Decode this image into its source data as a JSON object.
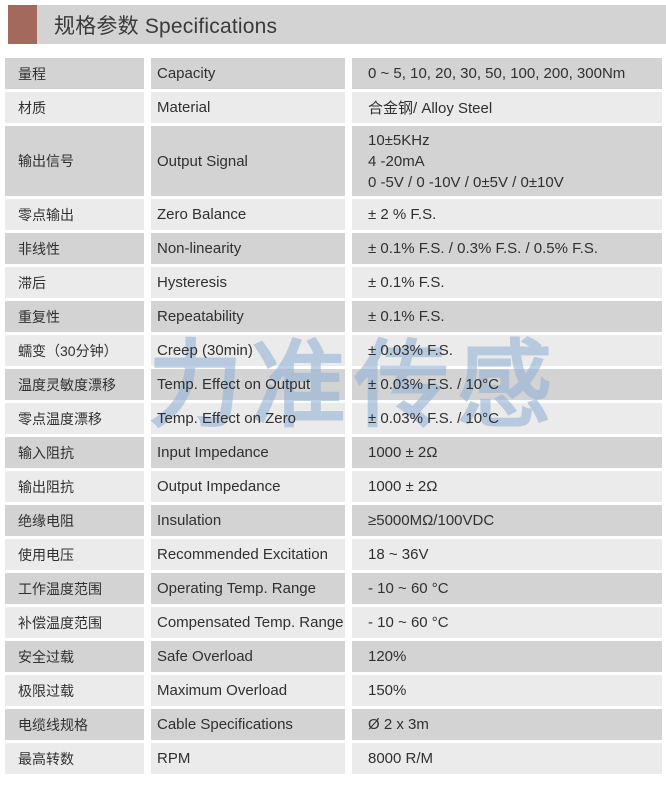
{
  "header": {
    "title": "规格参数 Specifications",
    "accent_color": "#a2695c"
  },
  "watermark": {
    "text": "力准传感",
    "color": "#92b2d6"
  },
  "colors": {
    "row_dark": "#d3d3d3",
    "row_light": "#ebebeb",
    "header_bar": "#d3d3d3"
  },
  "table": {
    "rows": [
      {
        "cn": "量程",
        "en": "Capacity",
        "value": "0 ~ 5, 10, 20, 30, 50, 100, 200, 300Nm"
      },
      {
        "cn": "材质",
        "en": "Material",
        "value": "合金钢/ Alloy Steel"
      },
      {
        "cn": "输出信号",
        "en": "Output Signal",
        "value_lines": [
          "10±5KHz",
          "4 -20mA",
          "0 -5V / 0 -10V / 0±5V / 0±10V"
        ]
      },
      {
        "cn": "零点输出",
        "en": "Zero Balance",
        "value": "± 2 % F.S."
      },
      {
        "cn": "非线性",
        "en": "Non-linearity",
        "value": "± 0.1% F.S. / 0.3% F.S. / 0.5% F.S."
      },
      {
        "cn": "滞后",
        "en": "Hysteresis",
        "value": "± 0.1% F.S."
      },
      {
        "cn": "重复性",
        "en": "Repeatability",
        "value": "± 0.1% F.S."
      },
      {
        "cn": "蠕变（30分钟）",
        "en": "Creep (30min)",
        "value": "± 0.03% F.S."
      },
      {
        "cn": "温度灵敏度漂移",
        "en": "Temp. Effect on Output",
        "value": "± 0.03% F.S. / 10°C"
      },
      {
        "cn": "零点温度漂移",
        "en": "Temp. Effect on Zero",
        "value": "± 0.03% F.S. / 10°C"
      },
      {
        "cn": "输入阻抗",
        "en": "Input Impedance",
        "value": "1000 ± 2Ω"
      },
      {
        "cn": "输出阻抗",
        "en": "Output Impedance",
        "value": "1000 ± 2Ω"
      },
      {
        "cn": "绝缘电阻",
        "en": "Insulation",
        "value": "≥5000MΩ/100VDC"
      },
      {
        "cn": "使用电压",
        "en": "Recommended Excitation",
        "value": "18 ~ 36V"
      },
      {
        "cn": "工作温度范围",
        "en": "Operating Temp. Range",
        "value": "- 10 ~ 60 °C"
      },
      {
        "cn": "补偿温度范围",
        "en": "Compensated Temp. Range",
        "value": "- 10 ~ 60 °C"
      },
      {
        "cn": "安全过载",
        "en": "Safe Overload",
        "value": "120%"
      },
      {
        "cn": "极限过载",
        "en": "Maximum Overload",
        "value": "150%"
      },
      {
        "cn": "电缆线规格",
        "en": "Cable Specifications",
        "value": "Ø 2 x 3m"
      },
      {
        "cn": "最高转数",
        "en": "RPM",
        "value": "8000 R/M"
      }
    ]
  }
}
